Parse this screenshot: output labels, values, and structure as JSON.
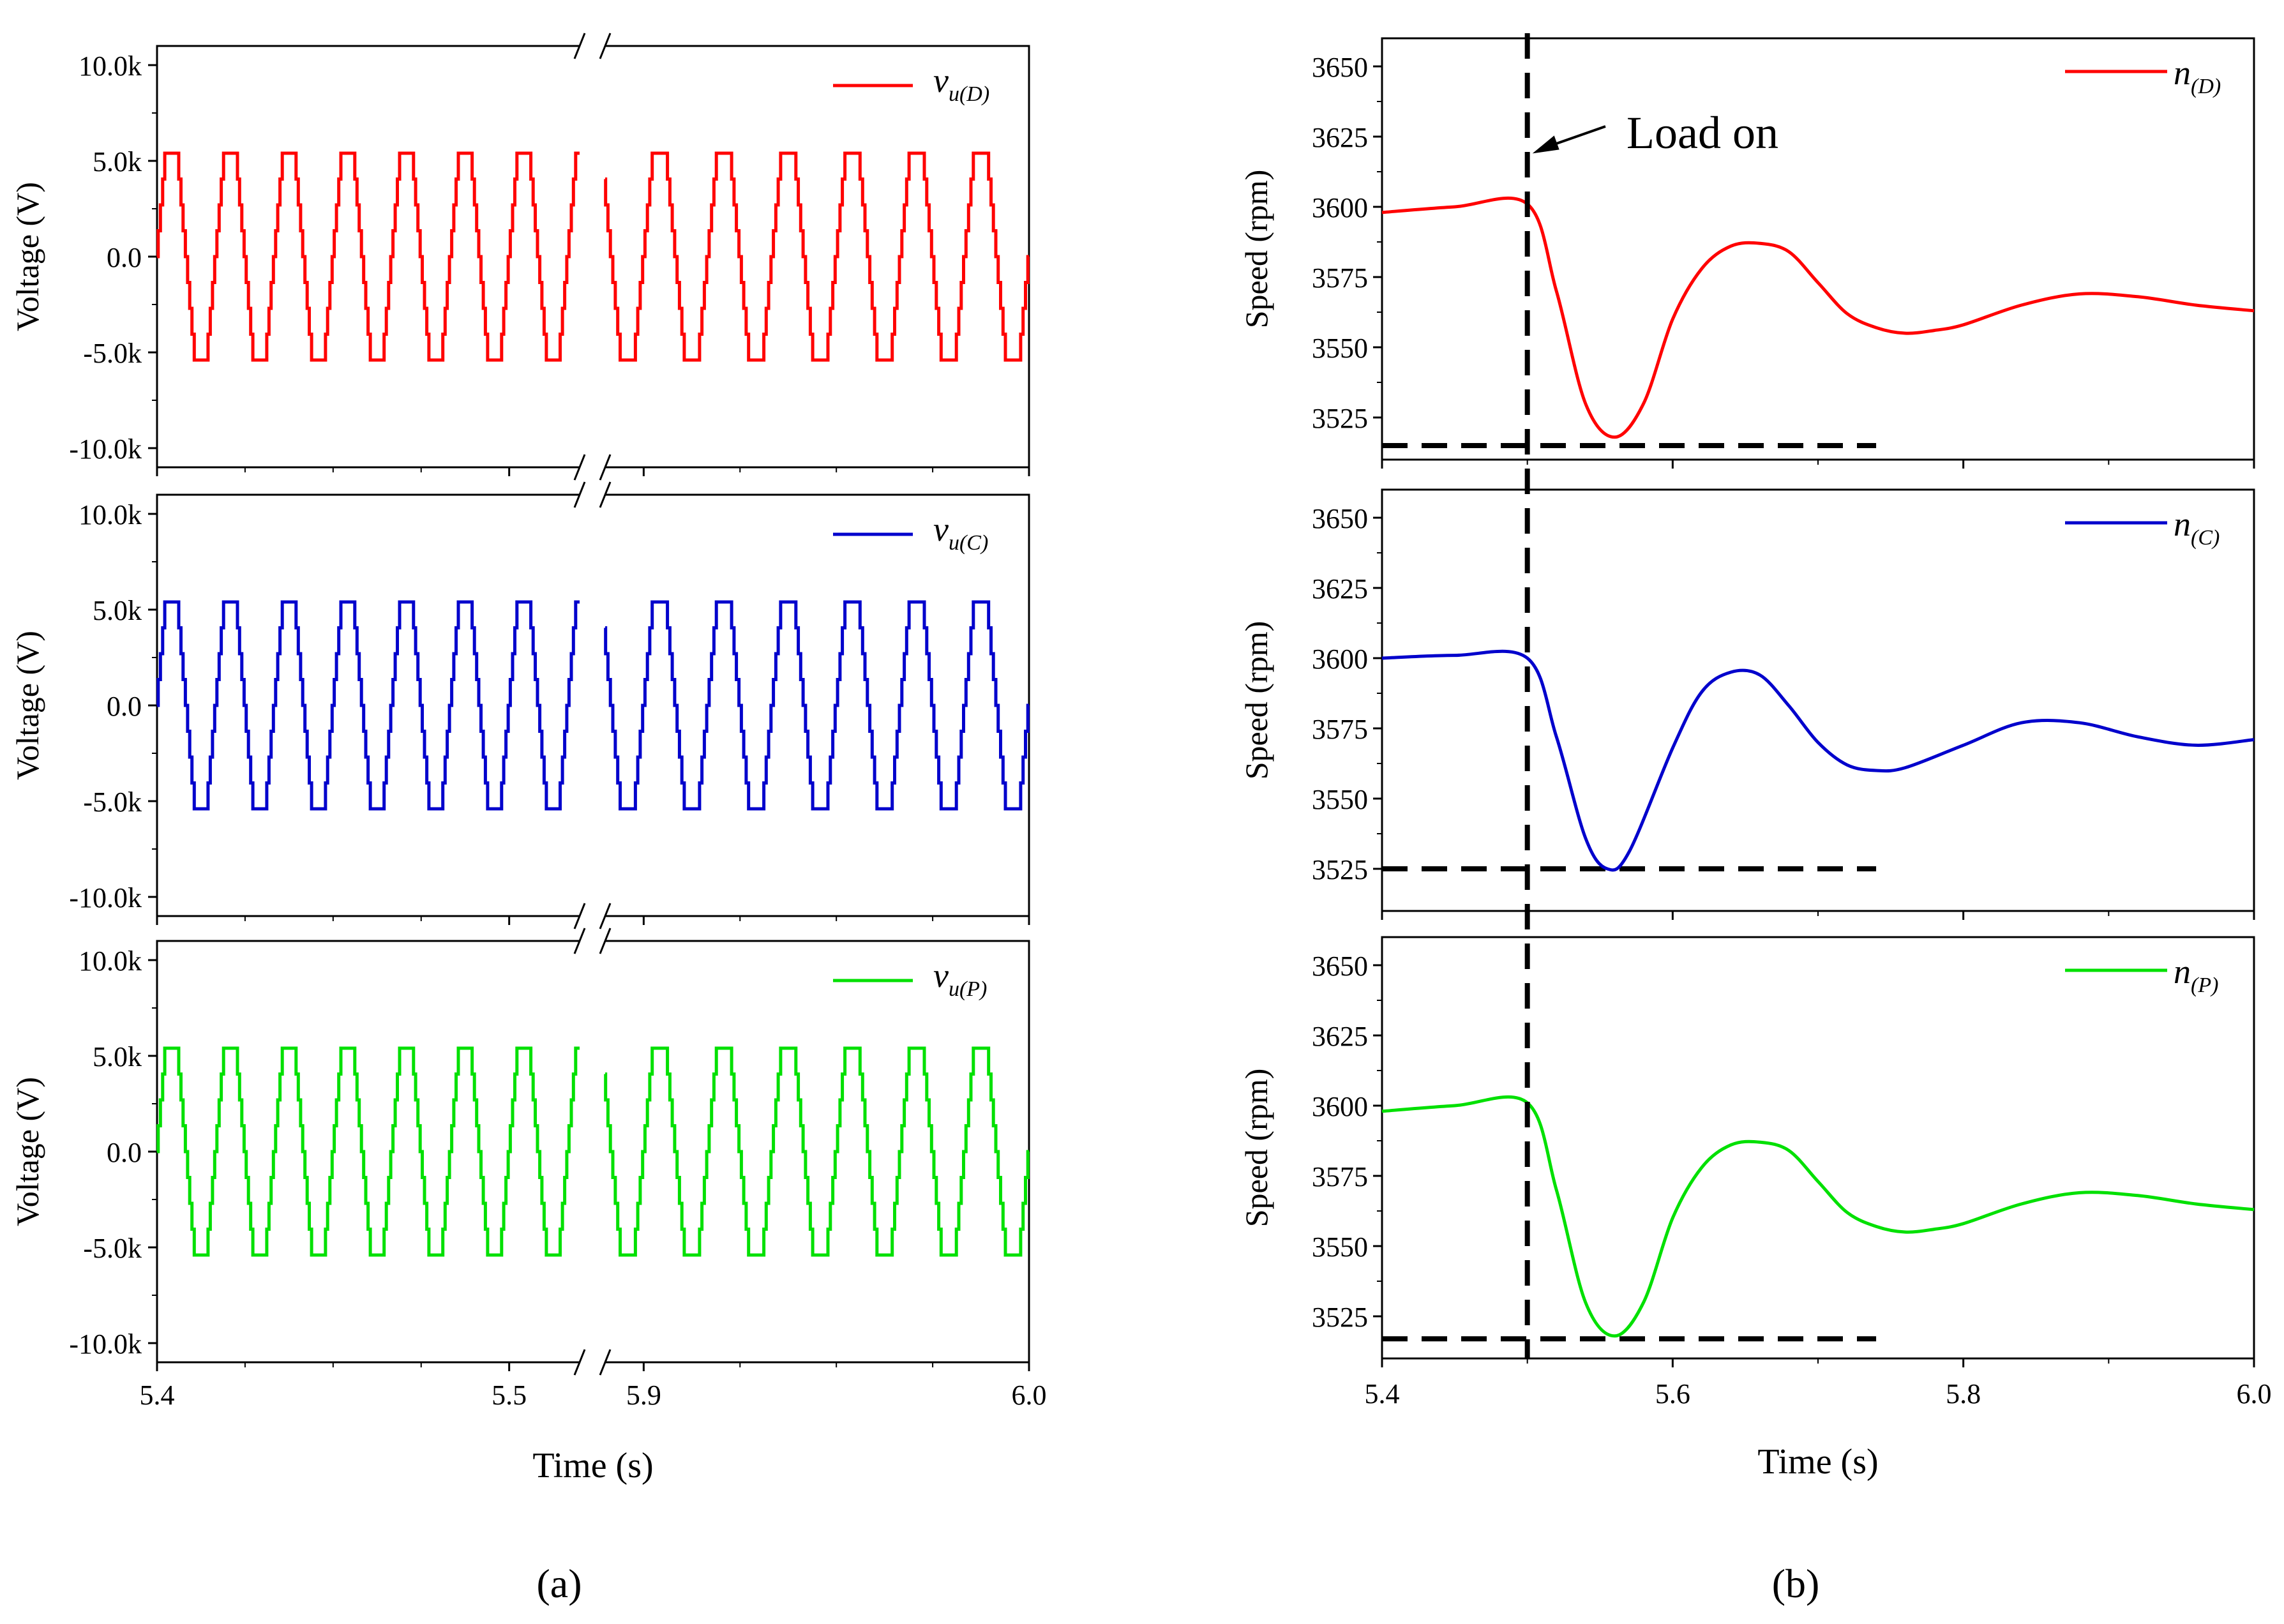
{
  "figure": {
    "panel_a_label": "(a)",
    "panel_b_label": "(b)"
  },
  "chart_data": [
    {
      "type": "line",
      "panel": "a",
      "xlabel": "Time (s)",
      "ylabel": "Voltage (V)",
      "ylim": [
        -11000,
        11000
      ],
      "yticks": [
        -10000,
        -5000,
        0,
        5000,
        10000
      ],
      "ytick_labels": [
        "-10.0k",
        "-5.0k",
        "0.0",
        "5.0k",
        "10.0k"
      ],
      "x_segments": [
        {
          "range": [
            5.4,
            5.52
          ],
          "ticks": [
            5.4,
            5.5
          ],
          "tick_labels": [
            "5.4",
            "5.5"
          ]
        },
        {
          "range": [
            5.89,
            6.0
          ],
          "ticks": [
            5.9,
            6.0
          ],
          "tick_labels": [
            "5.9",
            "6.0"
          ]
        }
      ],
      "axis_break": true,
      "waveform": {
        "amplitude": 5400,
        "frequency_hz": 60,
        "levels": 9,
        "shape": "staircase trapezoid"
      },
      "series": [
        {
          "name": "v_u(D)",
          "legend_main": "v",
          "legend_sub": "u(D)",
          "color": "#ff0000"
        },
        {
          "name": "v_u(C)",
          "legend_main": "v",
          "legend_sub": "u(C)",
          "color": "#0000cc"
        },
        {
          "name": "v_u(P)",
          "legend_main": "v",
          "legend_sub": "u(P)",
          "color": "#00e000"
        }
      ]
    },
    {
      "type": "line",
      "panel": "b",
      "xlabel": "Time (s)",
      "ylabel": "Speed (rpm)",
      "xlim": [
        5.4,
        6.0
      ],
      "xticks": [
        5.4,
        5.6,
        5.8,
        6.0
      ],
      "xtick_labels": [
        "5.4",
        "5.6",
        "5.8",
        "6.0"
      ],
      "ylim": [
        3510,
        3660
      ],
      "yticks": [
        3525,
        3550,
        3575,
        3600,
        3625,
        3650
      ],
      "ytick_labels": [
        "3525",
        "3550",
        "3575",
        "3600",
        "3625",
        "3650"
      ],
      "annotation": {
        "text": "Load on",
        "x": 5.5
      },
      "load_on_time": 5.5,
      "series": [
        {
          "name": "n(D)",
          "legend_main": "n",
          "legend_sub": "(D)",
          "color": "#ff0000",
          "points": [
            [
              5.4,
              3598
            ],
            [
              5.45,
              3600
            ],
            [
              5.5,
              3601
            ],
            [
              5.52,
              3570
            ],
            [
              5.54,
              3530
            ],
            [
              5.56,
              3518
            ],
            [
              5.58,
              3530
            ],
            [
              5.6,
              3560
            ],
            [
              5.62,
              3578
            ],
            [
              5.64,
              3586
            ],
            [
              5.66,
              3587
            ],
            [
              5.68,
              3584
            ],
            [
              5.7,
              3573
            ],
            [
              5.72,
              3562
            ],
            [
              5.74,
              3557
            ],
            [
              5.76,
              3555
            ],
            [
              5.78,
              3556
            ],
            [
              5.8,
              3558
            ],
            [
              5.84,
              3565
            ],
            [
              5.88,
              3569
            ],
            [
              5.92,
              3568
            ],
            [
              5.96,
              3565
            ],
            [
              6.0,
              3563
            ]
          ],
          "min_line": 3515
        },
        {
          "name": "n(C)",
          "legend_main": "n",
          "legend_sub": "(C)",
          "color": "#0000cc",
          "points": [
            [
              5.4,
              3600
            ],
            [
              5.45,
              3601
            ],
            [
              5.5,
              3600
            ],
            [
              5.52,
              3572
            ],
            [
              5.54,
              3536
            ],
            [
              5.555,
              3525
            ],
            [
              5.57,
              3531
            ],
            [
              5.6,
              3568
            ],
            [
              5.62,
              3588
            ],
            [
              5.64,
              3595
            ],
            [
              5.66,
              3594
            ],
            [
              5.68,
              3583
            ],
            [
              5.7,
              3570
            ],
            [
              5.72,
              3562
            ],
            [
              5.74,
              3560
            ],
            [
              5.76,
              3561
            ],
            [
              5.8,
              3569
            ],
            [
              5.84,
              3577
            ],
            [
              5.88,
              3577
            ],
            [
              5.92,
              3572
            ],
            [
              5.96,
              3569
            ],
            [
              6.0,
              3571
            ]
          ],
          "min_line": 3525
        },
        {
          "name": "n(P)",
          "legend_main": "n",
          "legend_sub": "(P)",
          "color": "#00e000",
          "points": [
            [
              5.4,
              3598
            ],
            [
              5.45,
              3600
            ],
            [
              5.5,
              3601
            ],
            [
              5.52,
              3570
            ],
            [
              5.54,
              3530
            ],
            [
              5.56,
              3518
            ],
            [
              5.58,
              3530
            ],
            [
              5.6,
              3560
            ],
            [
              5.62,
              3578
            ],
            [
              5.64,
              3586
            ],
            [
              5.66,
              3587
            ],
            [
              5.68,
              3584
            ],
            [
              5.7,
              3573
            ],
            [
              5.72,
              3562
            ],
            [
              5.74,
              3557
            ],
            [
              5.76,
              3555
            ],
            [
              5.78,
              3556
            ],
            [
              5.8,
              3558
            ],
            [
              5.84,
              3565
            ],
            [
              5.88,
              3569
            ],
            [
              5.92,
              3568
            ],
            [
              5.96,
              3565
            ],
            [
              6.0,
              3563
            ]
          ],
          "min_line": 3517
        }
      ]
    }
  ]
}
